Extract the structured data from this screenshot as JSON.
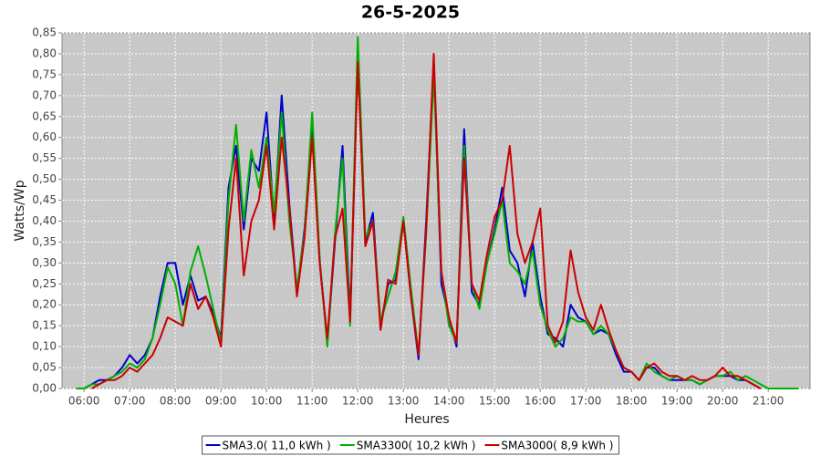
{
  "chart_data": {
    "type": "line",
    "title": "26-5-2025",
    "x_label": "Heures",
    "y_label": "Watts/Wp",
    "x": [
      "05:50",
      "06:00",
      "06:10",
      "06:20",
      "06:30",
      "06:40",
      "06:50",
      "07:00",
      "07:10",
      "07:20",
      "07:30",
      "07:40",
      "07:50",
      "08:00",
      "08:10",
      "08:20",
      "08:30",
      "08:40",
      "08:50",
      "09:00",
      "09:10",
      "09:20",
      "09:30",
      "09:40",
      "09:50",
      "10:00",
      "10:10",
      "10:20",
      "10:30",
      "10:40",
      "10:50",
      "11:00",
      "11:10",
      "11:20",
      "11:30",
      "11:40",
      "11:50",
      "12:00",
      "12:10",
      "12:20",
      "12:30",
      "12:40",
      "12:50",
      "13:00",
      "13:10",
      "13:20",
      "13:30",
      "13:40",
      "13:50",
      "14:00",
      "14:10",
      "14:20",
      "14:30",
      "14:40",
      "14:50",
      "15:00",
      "15:10",
      "15:20",
      "15:30",
      "15:40",
      "15:50",
      "16:00",
      "16:10",
      "16:20",
      "16:30",
      "16:40",
      "16:50",
      "17:00",
      "17:10",
      "17:20",
      "17:30",
      "17:40",
      "17:50",
      "18:00",
      "18:10",
      "18:20",
      "18:30",
      "18:40",
      "18:50",
      "19:00",
      "19:10",
      "19:20",
      "19:30",
      "19:40",
      "19:50",
      "20:00",
      "20:10",
      "20:20",
      "20:30",
      "20:40",
      "20:50",
      "21:00",
      "21:10",
      "21:20",
      "21:30",
      "21:40"
    ],
    "series": [
      {
        "name": "SMA3.0( 11,0 kWh )",
        "color": "#0000cc",
        "values": [
          null,
          0,
          0.01,
          0.02,
          0.02,
          0.03,
          0.05,
          0.08,
          0.06,
          0.08,
          0.12,
          0.22,
          0.3,
          0.3,
          0.2,
          0.27,
          0.21,
          0.22,
          0.18,
          0.12,
          0.48,
          0.58,
          0.38,
          0.55,
          0.52,
          0.66,
          0.4,
          0.7,
          0.44,
          0.23,
          0.38,
          0.62,
          0.3,
          0.11,
          0.35,
          0.58,
          0.17,
          0.78,
          0.35,
          0.42,
          0.15,
          0.25,
          0.26,
          0.4,
          0.22,
          0.07,
          0.4,
          0.78,
          0.25,
          0.17,
          0.1,
          0.62,
          0.23,
          0.2,
          0.3,
          0.38,
          0.48,
          0.33,
          0.3,
          0.22,
          0.35,
          0.22,
          0.13,
          0.12,
          0.1,
          0.2,
          0.17,
          0.16,
          0.13,
          0.14,
          0.13,
          0.08,
          0.04,
          0.04,
          0.02,
          0.05,
          0.05,
          0.03,
          0.02,
          0.02,
          0.02,
          0.02,
          0.01,
          0.02,
          0.03,
          0.03,
          0.03,
          0.02,
          0.02,
          0.01,
          0,
          null,
          null,
          null,
          null,
          null
        ]
      },
      {
        "name": "SMA3300( 10,2 kWh )",
        "color": "#00b000",
        "values": [
          0,
          0,
          0.01,
          0.01,
          0.02,
          0.03,
          0.04,
          0.06,
          0.05,
          0.07,
          0.12,
          0.2,
          0.29,
          0.25,
          0.15,
          0.28,
          0.34,
          0.27,
          0.19,
          0.11,
          0.45,
          0.63,
          0.4,
          0.57,
          0.48,
          0.6,
          0.42,
          0.66,
          0.4,
          0.24,
          0.37,
          0.66,
          0.31,
          0.1,
          0.37,
          0.55,
          0.15,
          0.84,
          0.36,
          0.4,
          0.16,
          0.22,
          0.28,
          0.41,
          0.24,
          0.08,
          0.37,
          0.75,
          0.28,
          0.15,
          0.11,
          0.58,
          0.25,
          0.19,
          0.3,
          0.37,
          0.45,
          0.3,
          0.28,
          0.25,
          0.33,
          0.2,
          0.14,
          0.1,
          0.12,
          0.17,
          0.16,
          0.16,
          0.13,
          0.15,
          0.13,
          0.09,
          0.05,
          0.04,
          0.02,
          0.06,
          0.04,
          0.03,
          0.02,
          0.03,
          0.02,
          0.02,
          0.01,
          0.02,
          0.03,
          0.03,
          0.04,
          0.02,
          0.03,
          0.02,
          0.01,
          0,
          0,
          0,
          0,
          0
        ]
      },
      {
        "name": "SMA3000( 8,9 kWh )",
        "color": "#cc0000",
        "values": [
          null,
          null,
          0,
          0.01,
          0.02,
          0.02,
          0.03,
          0.05,
          0.04,
          0.06,
          0.08,
          0.12,
          0.17,
          0.16,
          0.15,
          0.25,
          0.19,
          0.22,
          0.17,
          0.1,
          0.38,
          0.55,
          0.27,
          0.4,
          0.45,
          0.58,
          0.38,
          0.6,
          0.43,
          0.22,
          0.36,
          0.6,
          0.3,
          0.12,
          0.36,
          0.43,
          0.16,
          0.78,
          0.34,
          0.4,
          0.14,
          0.26,
          0.25,
          0.4,
          0.22,
          0.08,
          0.38,
          0.8,
          0.28,
          0.17,
          0.11,
          0.55,
          0.25,
          0.21,
          0.32,
          0.41,
          0.45,
          0.58,
          0.37,
          0.3,
          0.35,
          0.43,
          0.15,
          0.11,
          0.16,
          0.33,
          0.23,
          0.17,
          0.14,
          0.2,
          0.14,
          0.09,
          0.05,
          0.04,
          0.02,
          0.05,
          0.06,
          0.04,
          0.03,
          0.03,
          0.02,
          0.03,
          0.02,
          0.02,
          0.03,
          0.05,
          0.03,
          0.03,
          0.02,
          0.01,
          0,
          null,
          null,
          null,
          null,
          null
        ]
      }
    ],
    "xlim": [
      "05:31",
      "21:55"
    ],
    "xticks": [
      "06:00",
      "07:00",
      "08:00",
      "09:00",
      "10:00",
      "11:00",
      "12:00",
      "13:00",
      "14:00",
      "15:00",
      "16:00",
      "17:00",
      "18:00",
      "19:00",
      "20:00",
      "21:00"
    ],
    "ylim": [
      0,
      0.85
    ],
    "yticks": [
      {
        "value": 0,
        "label": "0,00"
      },
      {
        "value": 0.05,
        "label": "0,05"
      },
      {
        "value": 0.1,
        "label": "0,10"
      },
      {
        "value": 0.15,
        "label": "0,15"
      },
      {
        "value": 0.2,
        "label": "0,20"
      },
      {
        "value": 0.25,
        "label": "0,25"
      },
      {
        "value": 0.3,
        "label": "0,30"
      },
      {
        "value": 0.35,
        "label": "0,35"
      },
      {
        "value": 0.4,
        "label": "0,40"
      },
      {
        "value": 0.45,
        "label": "0,45"
      },
      {
        "value": 0.5,
        "label": "0,50"
      },
      {
        "value": 0.55,
        "label": "0,55"
      },
      {
        "value": 0.6,
        "label": "0,60"
      },
      {
        "value": 0.65,
        "label": "0,65"
      },
      {
        "value": 0.7,
        "label": "0,70"
      },
      {
        "value": 0.75,
        "label": "0,75"
      },
      {
        "value": 0.8,
        "label": "0,80"
      },
      {
        "value": 0.85,
        "label": "0,85"
      }
    ],
    "grid": true
  }
}
